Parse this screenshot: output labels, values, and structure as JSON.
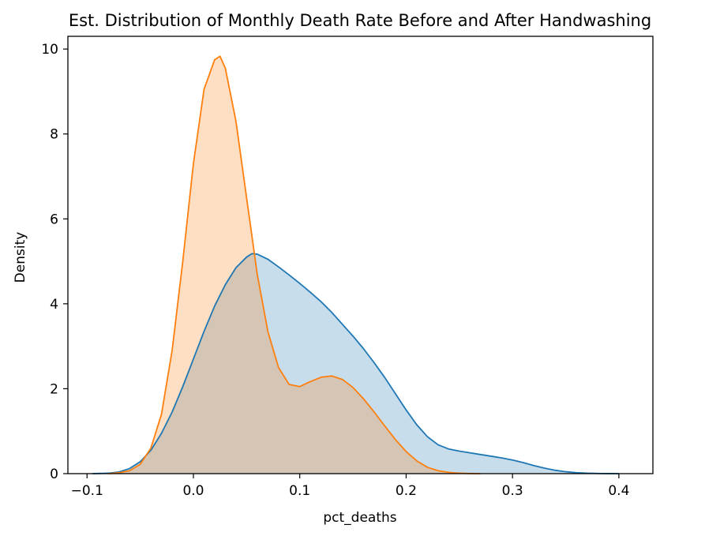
{
  "chart_data": {
    "type": "area",
    "title": "Est. Distribution of Monthly Death Rate Before and After Handwashing",
    "xlabel": "pct_deaths",
    "ylabel": "Density",
    "xlim": [
      -0.118,
      0.432
    ],
    "ylim": [
      0,
      10.3
    ],
    "x_ticks": [
      -0.1,
      0.0,
      0.1,
      0.2,
      0.3,
      0.4
    ],
    "x_tick_labels": [
      "−0.1",
      "0.0",
      "0.1",
      "0.2",
      "0.3",
      "0.4"
    ],
    "y_ticks": [
      0,
      2,
      4,
      6,
      8,
      10
    ],
    "y_tick_labels": [
      "0",
      "2",
      "4",
      "6",
      "8",
      "10"
    ],
    "grid": false,
    "legend": "none",
    "series": [
      {
        "color": "#1f77b4",
        "fill_color": "#c6dbee",
        "x": [
          -0.095,
          -0.08,
          -0.07,
          -0.06,
          -0.05,
          -0.04,
          -0.03,
          -0.02,
          -0.01,
          0.0,
          0.01,
          0.02,
          0.03,
          0.04,
          0.05,
          0.055,
          0.06,
          0.07,
          0.08,
          0.09,
          0.1,
          0.11,
          0.12,
          0.13,
          0.14,
          0.15,
          0.16,
          0.17,
          0.18,
          0.19,
          0.2,
          0.21,
          0.22,
          0.23,
          0.24,
          0.25,
          0.26,
          0.27,
          0.28,
          0.29,
          0.3,
          0.31,
          0.32,
          0.33,
          0.34,
          0.35,
          0.36,
          0.37,
          0.38,
          0.39,
          0.4
        ],
        "values": [
          0.0,
          0.01,
          0.04,
          0.12,
          0.28,
          0.55,
          0.95,
          1.45,
          2.05,
          2.7,
          3.35,
          3.95,
          4.45,
          4.85,
          5.1,
          5.18,
          5.17,
          5.05,
          4.87,
          4.68,
          4.48,
          4.27,
          4.05,
          3.8,
          3.52,
          3.24,
          2.94,
          2.61,
          2.26,
          1.88,
          1.5,
          1.15,
          0.87,
          0.68,
          0.58,
          0.53,
          0.49,
          0.45,
          0.41,
          0.37,
          0.32,
          0.26,
          0.19,
          0.13,
          0.08,
          0.045,
          0.022,
          0.01,
          0.004,
          0.001,
          0.0
        ]
      },
      {
        "color": "#ff7f0e",
        "fill_color": "#ffdac1",
        "x": [
          -0.08,
          -0.07,
          -0.06,
          -0.05,
          -0.04,
          -0.03,
          -0.02,
          -0.01,
          0.0,
          0.01,
          0.02,
          0.025,
          0.03,
          0.04,
          0.05,
          0.06,
          0.07,
          0.08,
          0.09,
          0.1,
          0.11,
          0.12,
          0.13,
          0.14,
          0.15,
          0.16,
          0.17,
          0.18,
          0.19,
          0.2,
          0.21,
          0.22,
          0.23,
          0.24,
          0.25,
          0.26,
          0.27
        ],
        "values": [
          0.0,
          0.02,
          0.07,
          0.22,
          0.6,
          1.4,
          2.9,
          5.0,
          7.3,
          9.05,
          9.75,
          9.83,
          9.55,
          8.3,
          6.5,
          4.7,
          3.35,
          2.5,
          2.1,
          2.05,
          2.17,
          2.27,
          2.3,
          2.22,
          2.03,
          1.76,
          1.45,
          1.12,
          0.8,
          0.52,
          0.3,
          0.15,
          0.07,
          0.03,
          0.01,
          0.003,
          0.0
        ]
      }
    ]
  }
}
